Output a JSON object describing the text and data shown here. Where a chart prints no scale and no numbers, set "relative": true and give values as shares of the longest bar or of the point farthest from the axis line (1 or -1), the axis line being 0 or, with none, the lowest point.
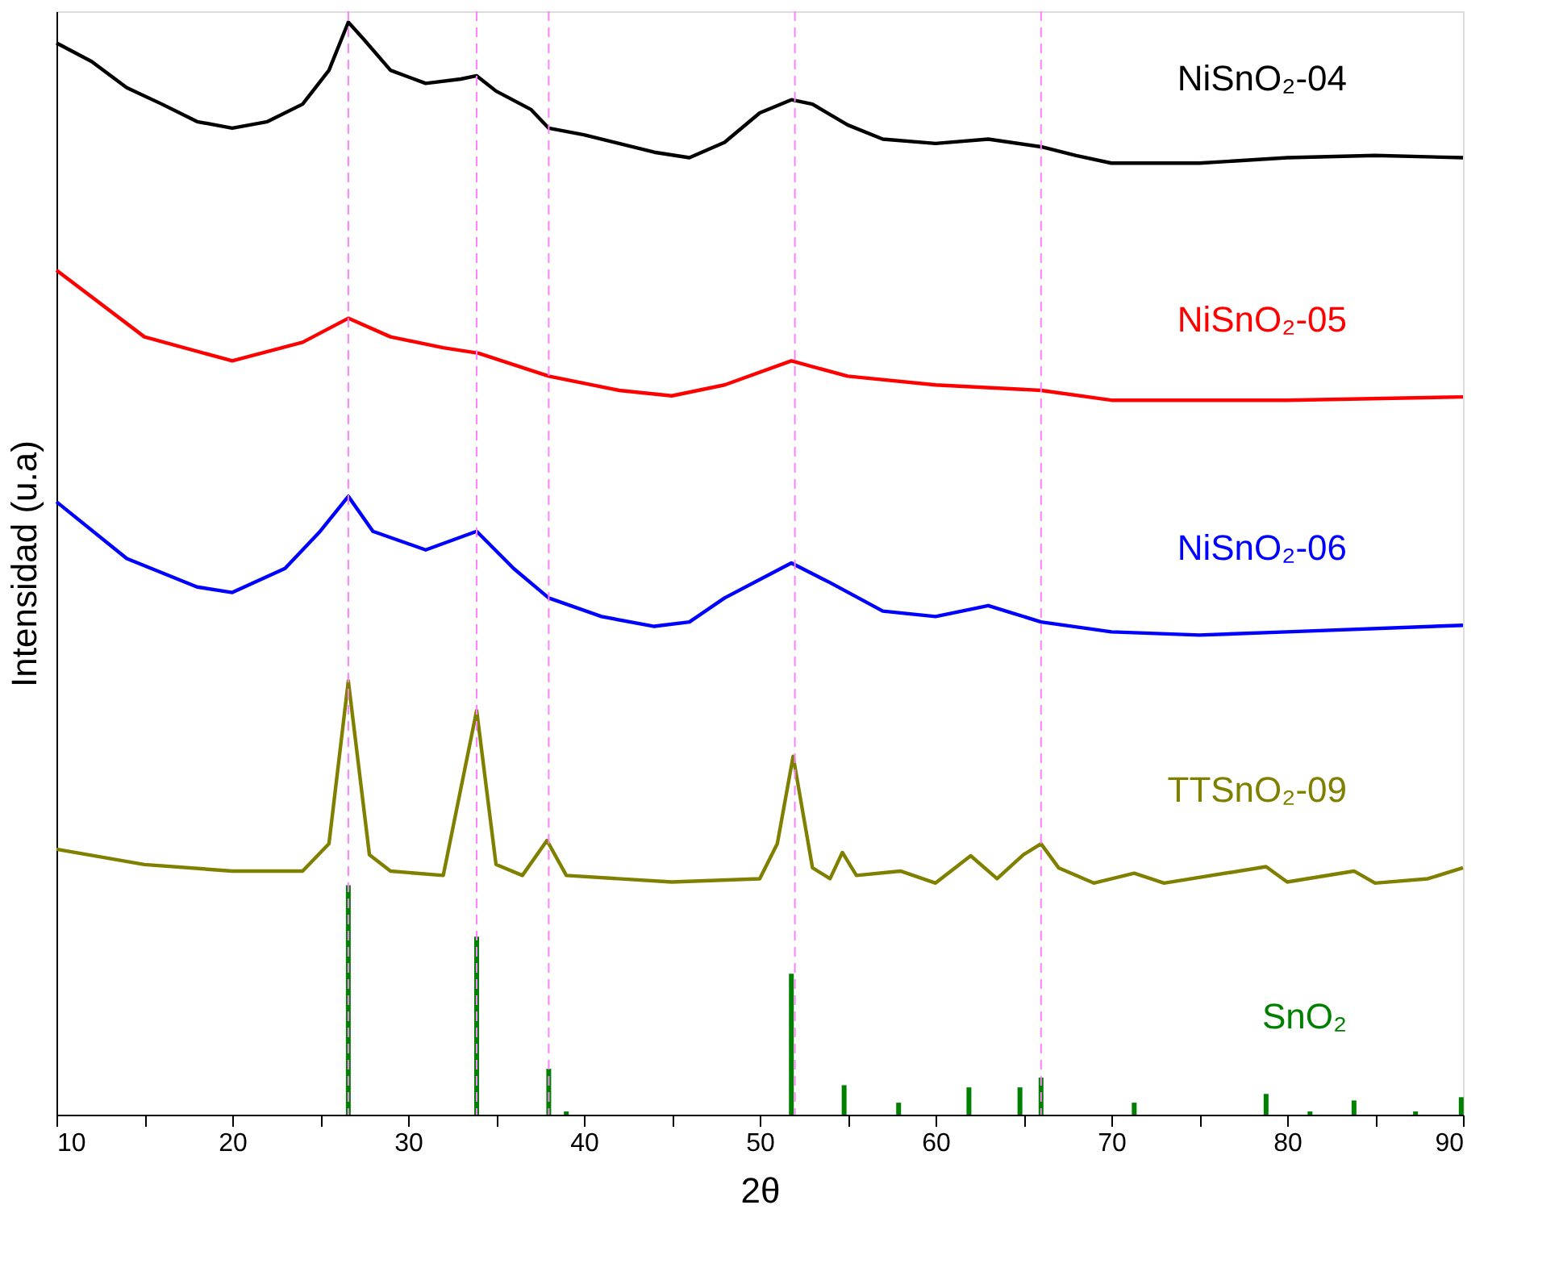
{
  "chart_data": {
    "type": "line",
    "relative": true,
    "xlabel": "2θ",
    "ylabel": "Intensidad (u.a)",
    "xlim": [
      10,
      90
    ],
    "xticks": [
      10,
      {
        "value": 15,
        "label": null
      },
      20,
      {
        "value": 25,
        "label": null
      },
      30,
      {
        "value": 35,
        "label": null
      },
      40,
      {
        "value": 45,
        "label": null
      },
      50,
      {
        "value": 55,
        "label": null
      },
      60,
      {
        "value": 65,
        "label": null
      },
      70,
      {
        "value": 75,
        "label": null
      },
      80,
      {
        "value": 85,
        "label": null
      },
      90
    ],
    "grid": false,
    "line_style": "solid",
    "ref_lines": [
      {
        "axis": "x",
        "value": 26.6,
        "color": "#ff80ff",
        "line_style": "dashed"
      },
      {
        "axis": "x",
        "value": 33.9,
        "color": "#ff80ff",
        "line_style": "dashed"
      },
      {
        "axis": "x",
        "value": 38.0,
        "color": "#ff80ff",
        "line_style": "dashed"
      },
      {
        "axis": "x",
        "value": 52.0,
        "color": "#ff80ff",
        "line_style": "dashed"
      },
      {
        "axis": "x",
        "value": 66.0,
        "color": "#ff80ff",
        "line_style": "dashed"
      }
    ],
    "series": [
      {
        "name": "NiSnO₂-04",
        "color": "#000000",
        "x": [
          10,
          12,
          14,
          16,
          18,
          20,
          22,
          24,
          25.5,
          26.6,
          27.5,
          29,
          31,
          33,
          33.9,
          35,
          37,
          38,
          40,
          42,
          44,
          46,
          48,
          50,
          51.8,
          53,
          55,
          57,
          60,
          63,
          66,
          68,
          70,
          75,
          80,
          85,
          90
        ],
        "values": [
          0.981,
          0.964,
          0.94,
          0.925,
          0.909,
          0.903,
          0.909,
          0.925,
          0.956,
          1.0,
          0.984,
          0.956,
          0.944,
          0.948,
          0.951,
          0.937,
          0.92,
          0.903,
          0.897,
          0.889,
          0.881,
          0.876,
          0.89,
          0.917,
          0.929,
          0.925,
          0.906,
          0.893,
          0.889,
          0.893,
          0.886,
          0.878,
          0.871,
          0.871,
          0.876,
          0.878,
          0.876
        ]
      },
      {
        "name": "NiSnO₂-05",
        "color": "#ff0000",
        "x": [
          10,
          15,
          20,
          24,
          26.6,
          29,
          32,
          34,
          38,
          42,
          45,
          48,
          51.8,
          55,
          60,
          66,
          70,
          80,
          90
        ],
        "values": [
          0.773,
          0.712,
          0.69,
          0.707,
          0.729,
          0.712,
          0.702,
          0.697,
          0.676,
          0.663,
          0.658,
          0.668,
          0.69,
          0.676,
          0.668,
          0.663,
          0.654,
          0.654,
          0.657
        ]
      },
      {
        "name": "NiSnO₂-06",
        "color": "#0000ff",
        "x": [
          10,
          14,
          18,
          20,
          23,
          25,
          26.6,
          28,
          31,
          33.9,
          36,
          38,
          41,
          44,
          46,
          48,
          51.8,
          54,
          57,
          60,
          63,
          66,
          70,
          75,
          80,
          90
        ],
        "values": [
          0.561,
          0.509,
          0.483,
          0.478,
          0.5,
          0.534,
          0.566,
          0.534,
          0.517,
          0.534,
          0.5,
          0.473,
          0.456,
          0.447,
          0.451,
          0.473,
          0.505,
          0.487,
          0.461,
          0.456,
          0.466,
          0.451,
          0.442,
          0.439,
          0.442,
          0.448
        ]
      },
      {
        "name": "TTSnO₂-09",
        "color": "#808000",
        "x": [
          10,
          15,
          20,
          24,
          25.5,
          26.6,
          27.8,
          29,
          32,
          33.9,
          35,
          36.5,
          37.9,
          39,
          45,
          50,
          51,
          51.9,
          53,
          54,
          54.7,
          55.5,
          58,
          60,
          62,
          63.5,
          65,
          66,
          67,
          69,
          71.3,
          73,
          78.8,
          80,
          83.8,
          85,
          88,
          90
        ],
        "values": [
          0.243,
          0.229,
          0.223,
          0.223,
          0.248,
          0.397,
          0.238,
          0.223,
          0.219,
          0.37,
          0.229,
          0.219,
          0.251,
          0.219,
          0.213,
          0.216,
          0.248,
          0.328,
          0.226,
          0.216,
          0.24,
          0.219,
          0.223,
          0.212,
          0.237,
          0.216,
          0.238,
          0.248,
          0.226,
          0.212,
          0.221,
          0.212,
          0.227,
          0.213,
          0.223,
          0.212,
          0.216,
          0.226
        ]
      },
      {
        "name": "SnO₂",
        "type": "bar",
        "color": "#008000",
        "x": [
          26.6,
          33.9,
          38.0,
          39.0,
          51.8,
          54.8,
          57.9,
          61.9,
          64.8,
          66.0,
          71.3,
          78.8,
          81.3,
          83.8,
          87.3,
          89.9
        ],
        "values": [
          0.21,
          0.163,
          0.042,
          0.003,
          0.129,
          0.027,
          0.011,
          0.025,
          0.025,
          0.034,
          0.011,
          0.019,
          0.003,
          0.013,
          0.003,
          0.016
        ]
      }
    ]
  }
}
